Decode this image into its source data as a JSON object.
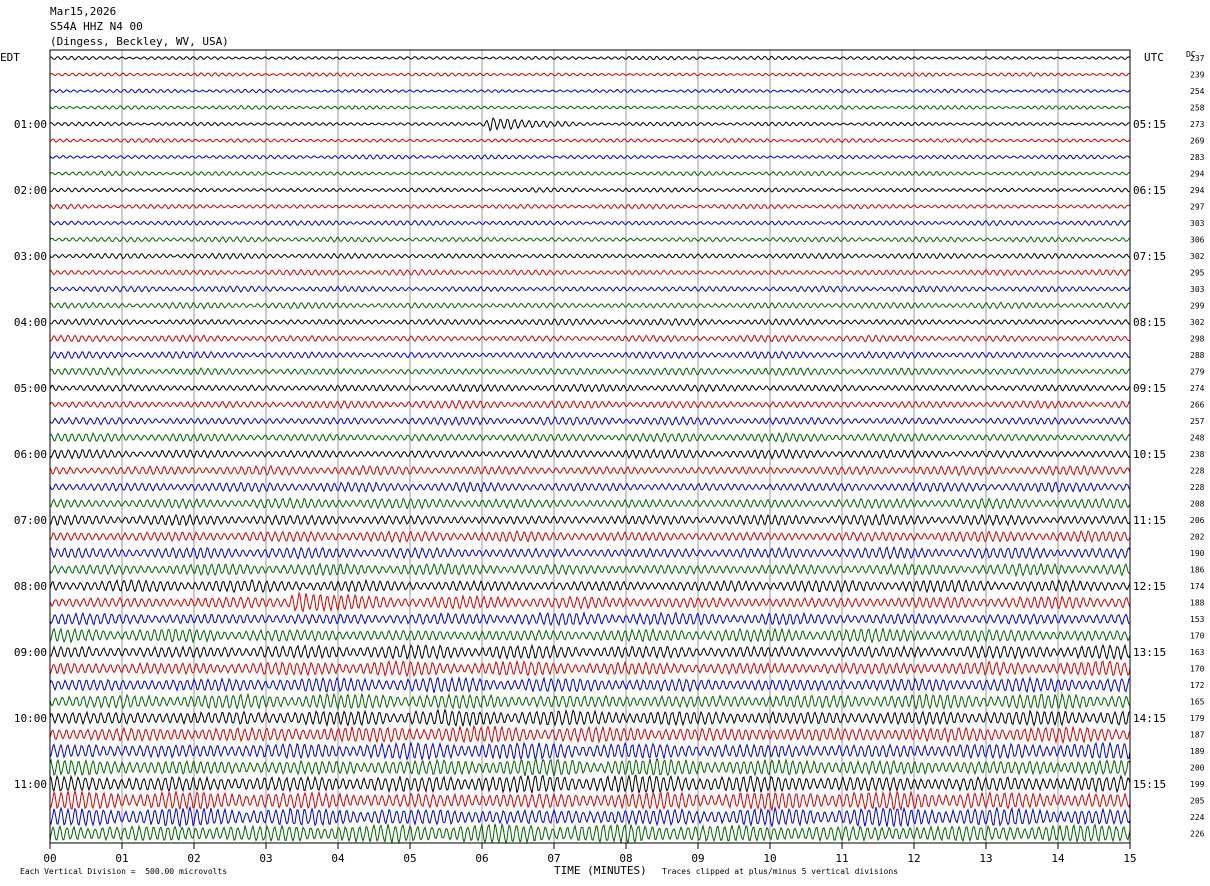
{
  "header": {
    "date": "Mar15,2026",
    "station": "S54A HHZ N4 00",
    "location": "(Dingess, Beckley, WV, USA)"
  },
  "axis_labels": {
    "left_tz": "EDT",
    "right_tz": "UTC",
    "dc_label": "DC",
    "xlabel": "TIME (MINUTES)"
  },
  "footer": {
    "scale_note": "Each Vertical Division =  500.00 microvolts",
    "clip_note": "Traces clipped at plus/minus 5 vertical divisions"
  },
  "colors": {
    "trace_cycle": [
      "#000000",
      "#d40000",
      "#0000d0",
      "#006400"
    ],
    "grid": "#808080",
    "axis": "#000000"
  },
  "chart_data": {
    "type": "line",
    "description_kind": "helicorder",
    "x_ticks": [
      "00",
      "01",
      "02",
      "03",
      "04",
      "05",
      "06",
      "07",
      "08",
      "09",
      "10",
      "11",
      "12",
      "13",
      "14",
      "15"
    ],
    "xlim": [
      0,
      15
    ],
    "rows_per_hour": 4,
    "row_count": 48,
    "left_hour_labels": [
      "01:00",
      "02:00",
      "03:00",
      "04:00",
      "05:00",
      "06:00",
      "07:00",
      "08:00",
      "09:00",
      "10:00",
      "11:00"
    ],
    "right_hour_labels": [
      "05:15",
      "06:15",
      "07:15",
      "08:15",
      "09:15",
      "10:15",
      "11:15",
      "12:15",
      "13:15",
      "14:15",
      "15:15"
    ],
    "dc_offsets": [
      237,
      239,
      254,
      258,
      273,
      269,
      283,
      294,
      294,
      297,
      303,
      306,
      302,
      295,
      303,
      299,
      302,
      298,
      288,
      279,
      274,
      266,
      257,
      248,
      238,
      228,
      228,
      208,
      206,
      202,
      190,
      186,
      174,
      188,
      153,
      170,
      163,
      170,
      172,
      165,
      179,
      187,
      189,
      200,
      199,
      205,
      224,
      226
    ],
    "amplitude_trend_note": "",
    "events": [
      {
        "row": 4,
        "minute_start": 6.0,
        "minute_end": 7.3
      },
      {
        "row": 33,
        "minute_start": 3.3,
        "minute_end": 4.6
      }
    ]
  }
}
